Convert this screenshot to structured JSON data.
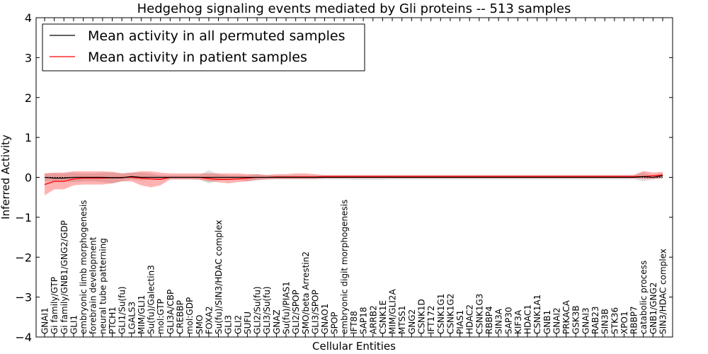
{
  "chart_data": {
    "type": "line",
    "title": "Hedgehog signaling events mediated by Gli proteins -- 513 samples",
    "xlabel": "Cellular Entities",
    "ylabel": "Inferred Activity",
    "ylim": [
      -4,
      4
    ],
    "yticks": [
      "4",
      "3",
      "2",
      "1",
      "0",
      "−1",
      "−2",
      "−3",
      "−4"
    ],
    "legend": {
      "placement": "top-left",
      "items": [
        {
          "label": "Mean activity in all permuted samples",
          "color": "#000000"
        },
        {
          "label": "Mean activity in patient samples",
          "color": "#ff0000"
        }
      ]
    },
    "categories": [
      "GNAI1",
      "Gi family/GTP",
      "Gi family/GNB1/GNG2/GDP",
      "GLI1",
      "embryonic limb morphogenesis",
      "forebrain development",
      "neural tube patterning",
      "PTCH1",
      "GLI1/Su(fu)",
      "LGALS3",
      "MIM/GLI1",
      "Su(fu)/Galectin3",
      "mol:GTP",
      "GLI3A/CBP",
      "CREBBP",
      "mol:GDP",
      "SMO",
      "FOXA2",
      "Su(fu)/SIN3/HDAC complex",
      "GLI3",
      "GLI2",
      "SUFU",
      "GLI2/Su(fu)",
      "GLI3/Su(fu)",
      "GNAZ",
      "Su(fu)/PIAS1",
      "GLI2/SPOP",
      "SMO/beta Arrestin2",
      "GLI3/SPOP",
      "GNAO1",
      "SPOP",
      "embryonic digit morphogenesis",
      "IFT88",
      "SAP18",
      "ARRB2",
      "CSNK1E",
      "MIM/GLI2A",
      "MTSS1",
      "GNG2",
      "CSNK1D",
      "IFT172",
      "CSNK1G1",
      "CSNK1G2",
      "PIAS1",
      "HDAC2",
      "CSNK1G3",
      "RBBP4",
      "SIN3A",
      "SAP30",
      "KIF3A",
      "HDAC1",
      "CSNK1A1",
      "GNB1",
      "GNAI2",
      "PRKACA",
      "GSK3B",
      "GNAI3",
      "RAB23",
      "SIN3B",
      "STK36",
      "XPO1",
      "RBBP7",
      "catabolic process",
      "GNB1/GNG2",
      "SIN3/HDAC complex"
    ],
    "series": [
      {
        "name": "Mean activity in all permuted samples",
        "color": "#000000",
        "values": [
          0.0,
          -0.02,
          -0.02,
          0.0,
          0.0,
          0.0,
          0.0,
          -0.01,
          -0.01,
          0.02,
          0.0,
          0.0,
          0.0,
          0.0,
          0.0,
          0.0,
          0.0,
          0.0,
          0.0,
          0.0,
          0.0,
          0.0,
          0.0,
          0.0,
          0.0,
          0.0,
          0.0,
          0.0,
          0.0,
          0.0,
          0.0,
          0.0,
          0.0,
          0.0,
          0.0,
          0.0,
          0.0,
          0.0,
          0.0,
          0.0,
          0.0,
          0.0,
          0.0,
          0.0,
          0.0,
          0.0,
          0.0,
          0.0,
          0.0,
          0.0,
          0.0,
          0.0,
          0.0,
          0.0,
          0.0,
          0.0,
          0.0,
          0.0,
          0.0,
          0.0,
          0.0,
          0.0,
          0.02,
          0.0,
          0.04
        ],
        "lower": [
          -0.1,
          -0.1,
          -0.1,
          -0.12,
          -0.1,
          -0.1,
          -0.12,
          -0.15,
          -0.1,
          -0.05,
          -0.08,
          -0.05,
          -0.05,
          -0.05,
          -0.05,
          -0.05,
          -0.05,
          -0.15,
          -0.08,
          -0.05,
          -0.05,
          -0.1,
          -0.08,
          -0.05,
          -0.05,
          -0.05,
          -0.05,
          -0.05,
          -0.05,
          -0.05,
          -0.05,
          -0.05,
          -0.06,
          -0.06,
          -0.06,
          -0.06,
          -0.05,
          -0.05,
          -0.05,
          -0.05,
          -0.05,
          -0.05,
          -0.05,
          -0.05,
          -0.05,
          -0.05,
          -0.05,
          -0.05,
          -0.05,
          -0.05,
          -0.05,
          -0.05,
          -0.05,
          -0.05,
          -0.05,
          -0.05,
          -0.05,
          -0.05,
          -0.05,
          -0.05,
          -0.05,
          -0.05,
          -0.1,
          -0.05,
          -0.03
        ],
        "upper": [
          0.1,
          0.1,
          0.1,
          0.12,
          0.1,
          0.1,
          0.12,
          0.12,
          0.1,
          0.12,
          0.12,
          0.1,
          0.05,
          0.05,
          0.05,
          0.05,
          0.05,
          0.18,
          0.08,
          0.05,
          0.05,
          0.05,
          0.08,
          0.05,
          0.05,
          0.05,
          0.05,
          0.05,
          0.05,
          0.05,
          0.05,
          0.05,
          0.05,
          0.05,
          0.05,
          0.05,
          0.05,
          0.05,
          0.05,
          0.05,
          0.05,
          0.05,
          0.05,
          0.05,
          0.05,
          0.05,
          0.05,
          0.05,
          0.05,
          0.05,
          0.05,
          0.05,
          0.05,
          0.05,
          0.05,
          0.05,
          0.05,
          0.05,
          0.05,
          0.05,
          0.05,
          0.05,
          0.12,
          0.05,
          0.1
        ]
      },
      {
        "name": "Mean activity in patient samples",
        "color": "#ff0000",
        "values": [
          -0.18,
          -0.1,
          -0.1,
          -0.04,
          -0.02,
          -0.02,
          -0.02,
          -0.01,
          0.0,
          0.0,
          -0.02,
          -0.04,
          -0.05,
          0.0,
          0.0,
          0.0,
          0.0,
          -0.03,
          -0.05,
          -0.05,
          -0.04,
          -0.02,
          0.0,
          0.0,
          0.01,
          0.01,
          0.01,
          0.01,
          0.01,
          0.02,
          0.02,
          0.02,
          0.02,
          0.02,
          0.02,
          0.02,
          0.02,
          0.02,
          0.02,
          0.02,
          0.02,
          0.02,
          0.02,
          0.02,
          0.02,
          0.02,
          0.02,
          0.02,
          0.02,
          0.02,
          0.02,
          0.02,
          0.02,
          0.02,
          0.02,
          0.02,
          0.02,
          0.02,
          0.02,
          0.02,
          0.02,
          0.02,
          0.02,
          0.04,
          0.06
        ],
        "lower": [
          -0.45,
          -0.3,
          -0.3,
          -0.2,
          -0.18,
          -0.18,
          -0.18,
          -0.15,
          -0.1,
          -0.1,
          -0.2,
          -0.25,
          -0.2,
          -0.05,
          -0.05,
          -0.05,
          -0.06,
          -0.1,
          -0.12,
          -0.15,
          -0.12,
          -0.1,
          -0.06,
          -0.05,
          -0.04,
          -0.04,
          -0.04,
          -0.04,
          -0.04,
          -0.02,
          -0.02,
          -0.02,
          -0.02,
          -0.02,
          -0.02,
          -0.02,
          -0.02,
          -0.02,
          -0.02,
          -0.02,
          -0.02,
          -0.02,
          -0.02,
          -0.02,
          -0.02,
          -0.02,
          -0.02,
          -0.02,
          -0.02,
          -0.02,
          -0.02,
          -0.02,
          -0.02,
          -0.02,
          -0.02,
          -0.02,
          -0.02,
          -0.02,
          -0.02,
          -0.02,
          -0.02,
          -0.02,
          -0.04,
          -0.04,
          -0.02
        ],
        "upper": [
          0.1,
          0.12,
          0.12,
          0.15,
          0.15,
          0.15,
          0.15,
          0.14,
          0.1,
          0.12,
          0.15,
          0.15,
          0.12,
          0.1,
          0.1,
          0.1,
          0.1,
          0.1,
          0.1,
          0.1,
          0.1,
          0.08,
          0.08,
          0.06,
          0.08,
          0.08,
          0.1,
          0.1,
          0.08,
          0.06,
          0.06,
          0.06,
          0.06,
          0.06,
          0.06,
          0.06,
          0.06,
          0.06,
          0.06,
          0.06,
          0.06,
          0.06,
          0.06,
          0.06,
          0.06,
          0.06,
          0.06,
          0.06,
          0.06,
          0.06,
          0.06,
          0.06,
          0.06,
          0.06,
          0.06,
          0.06,
          0.06,
          0.06,
          0.06,
          0.06,
          0.06,
          0.06,
          0.16,
          0.12,
          0.14
        ]
      }
    ]
  }
}
